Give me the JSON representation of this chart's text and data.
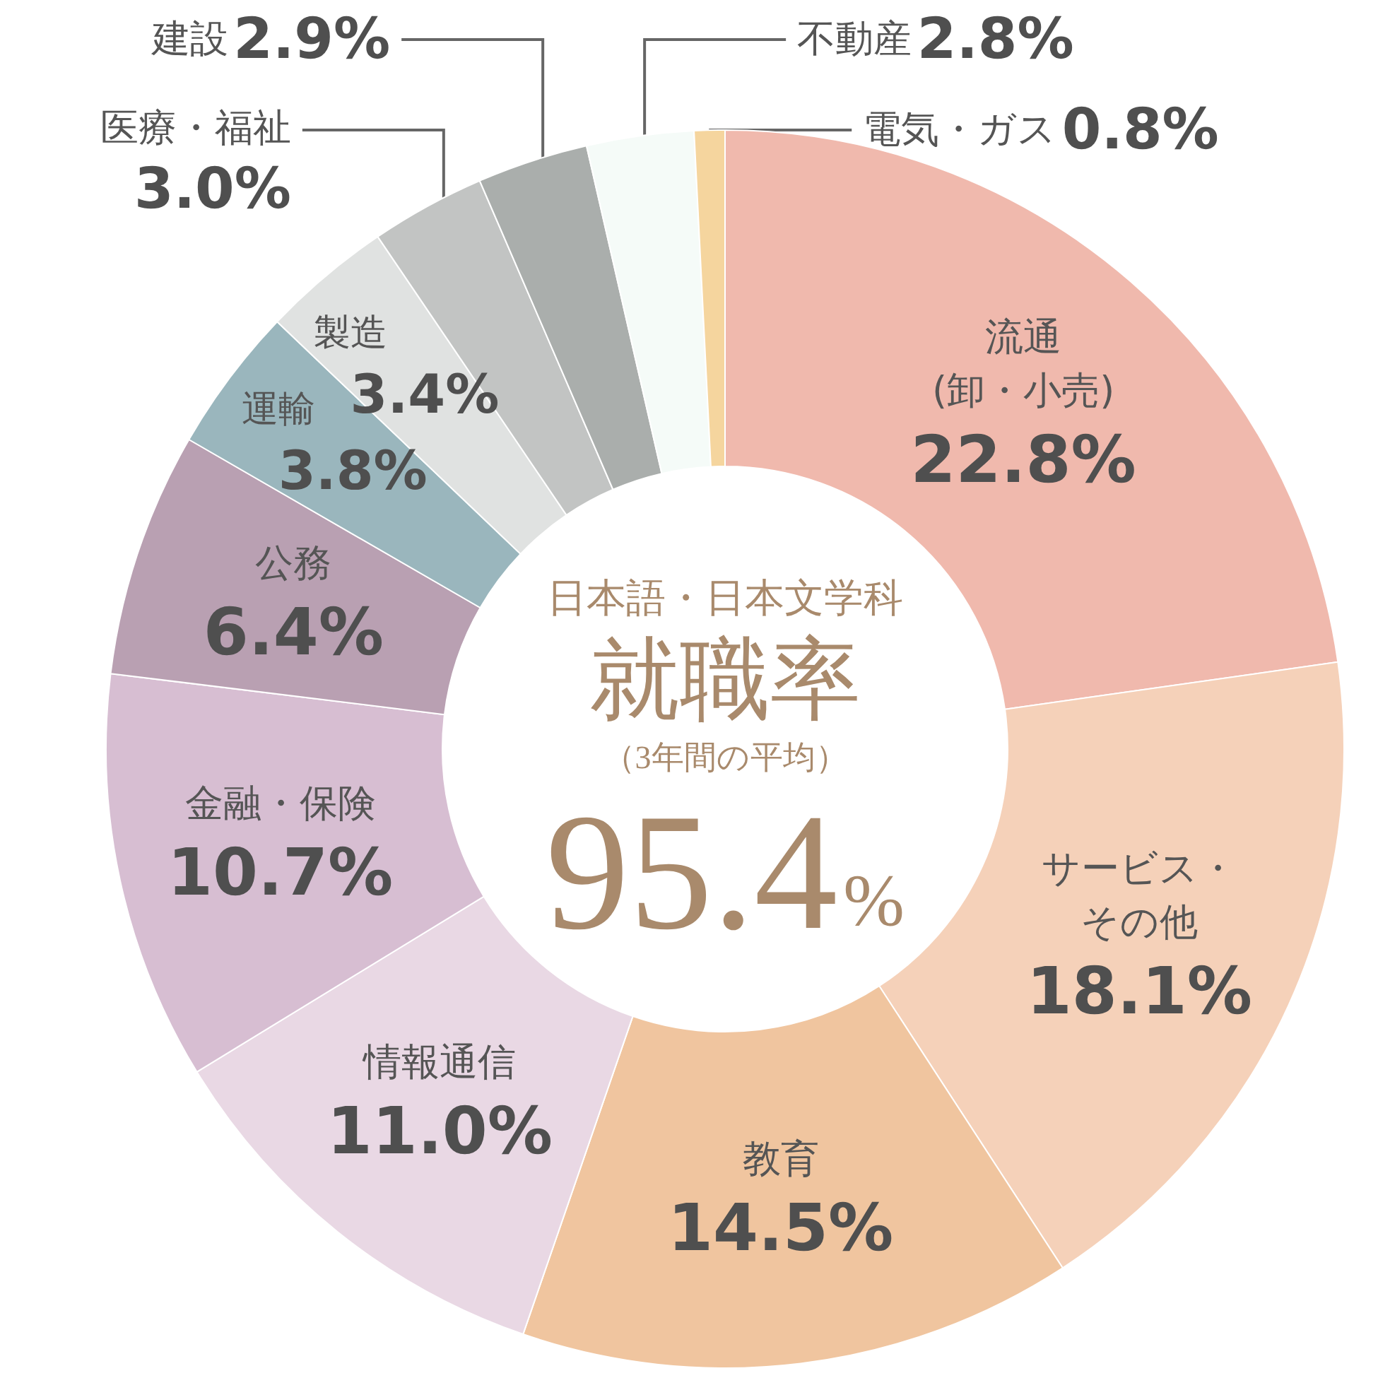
{
  "chart_data": {
    "type": "donut",
    "subtitle": "日本語・日本文学科",
    "title": "就職率",
    "annotations": [
      "（3年間の平均）",
      "95.4%"
    ],
    "categories": [
      "流通(卸・小売)",
      "サービス・その他",
      "教育",
      "情報通信",
      "金融・保険",
      "公務",
      "運輸",
      "製造",
      "医療・福祉",
      "建設",
      "不動産",
      "電気・ガス"
    ],
    "values": [
      22.8,
      18.1,
      14.5,
      11.0,
      10.7,
      6.4,
      3.8,
      3.4,
      3.0,
      2.9,
      2.8,
      0.8
    ],
    "value_labels": [
      "22.8%",
      "18.1%",
      "14.5%",
      "11.0%",
      "10.7%",
      "6.4%",
      "3.8%",
      "3.4%",
      "3.0%",
      "2.9%",
      "2.8%",
      "0.8%"
    ],
    "colors": [
      "#f0b9ad",
      "#f5d1b9",
      "#f0c59f",
      "#e9d8e4",
      "#d7bed2",
      "#b9a0b2",
      "#9ab6bd",
      "#e0e2e1",
      "#c2c4c3",
      "#aaaeac",
      "#f5fbf8",
      "#f5d59e"
    ]
  }
}
